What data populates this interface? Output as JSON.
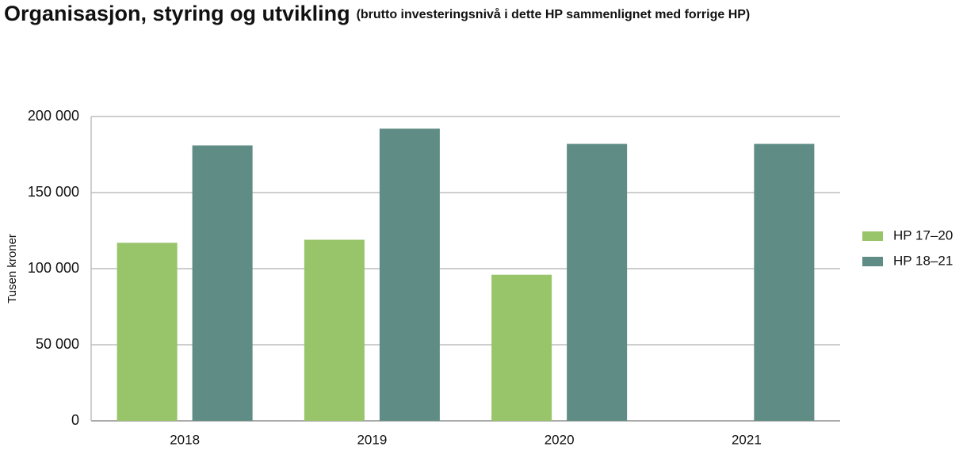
{
  "chart_data": {
    "type": "bar",
    "title": "Organisasjon, styring og utvikling",
    "subtitle": "(brutto investeringsnivå i dette HP sammenlignet med forrige HP)",
    "y_label": "Tusen kroner",
    "categories": [
      "2018",
      "2019",
      "2020",
      "2021"
    ],
    "series": [
      {
        "name": "HP 17–20",
        "color": "#98c46a",
        "values": [
          117000,
          119000,
          96000,
          null
        ]
      },
      {
        "name": "HP 18–21",
        "color": "#5f8d85",
        "values": [
          181000,
          192000,
          182000,
          182000
        ]
      }
    ],
    "ylim": [
      0,
      200000
    ],
    "yticks": [
      0,
      {
        "value": 50000,
        "label": "50 000"
      },
      {
        "value": 100000,
        "label": "100 000"
      },
      {
        "value": 150000,
        "label": "150 000"
      },
      {
        "value": 200000,
        "label": "200 000"
      }
    ],
    "grid": true,
    "legend": "right"
  }
}
